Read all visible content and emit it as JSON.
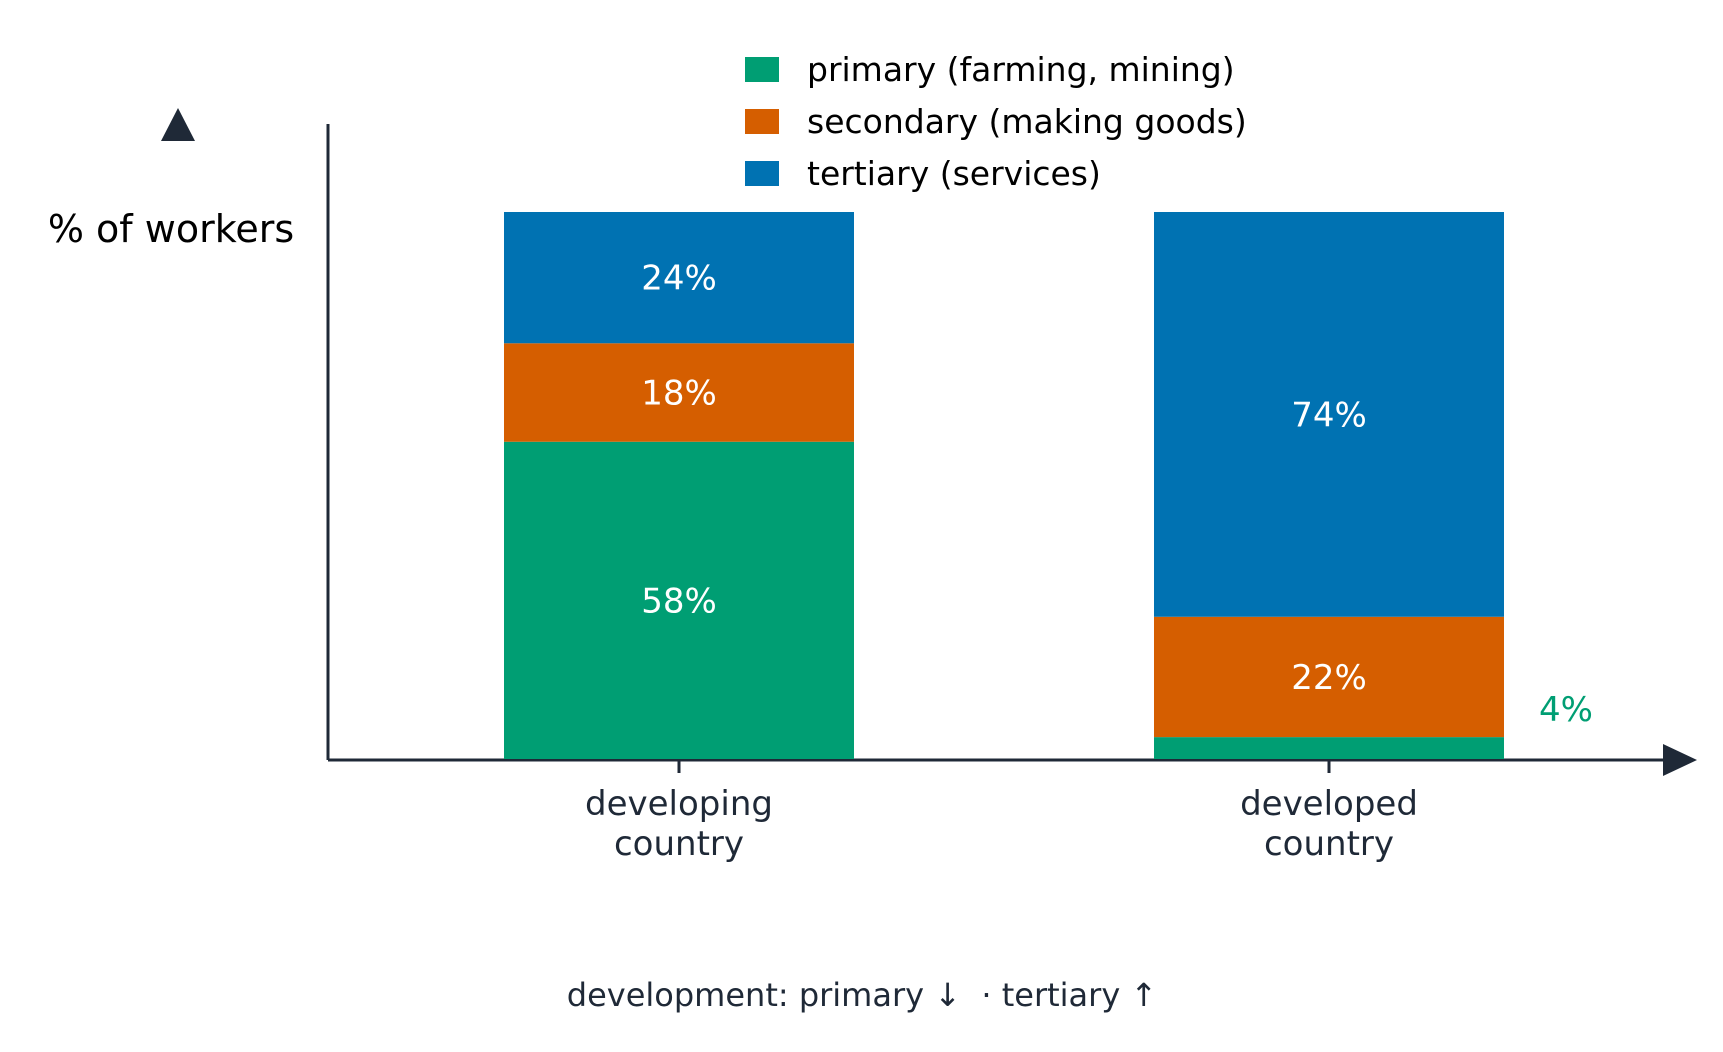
{
  "chart_data": {
    "type": "bar",
    "stacked": true,
    "categories": [
      "developing\ncountry",
      "developed\ncountry"
    ],
    "category_lines": [
      [
        "developing",
        "country"
      ],
      [
        "developed",
        "country"
      ]
    ],
    "series": [
      {
        "name": "primary (farming, mining)",
        "values": [
          58,
          4
        ],
        "labels": [
          "58%",
          "4%"
        ],
        "color": "#009E73"
      },
      {
        "name": "secondary (making goods)",
        "values": [
          18,
          22
        ],
        "labels": [
          "18%",
          "22%"
        ],
        "color": "#D55E00"
      },
      {
        "name": "tertiary (services)",
        "values": [
          24,
          74
        ],
        "labels": [
          "24%",
          "74%"
        ],
        "color": "#0072B2"
      }
    ],
    "ylabel": "% of workers",
    "ylim": [
      0,
      100
    ],
    "grid": false,
    "legend": "top",
    "annotation": "development: primary ↓  · tertiary ↑",
    "axis_color": "#1f2937"
  }
}
